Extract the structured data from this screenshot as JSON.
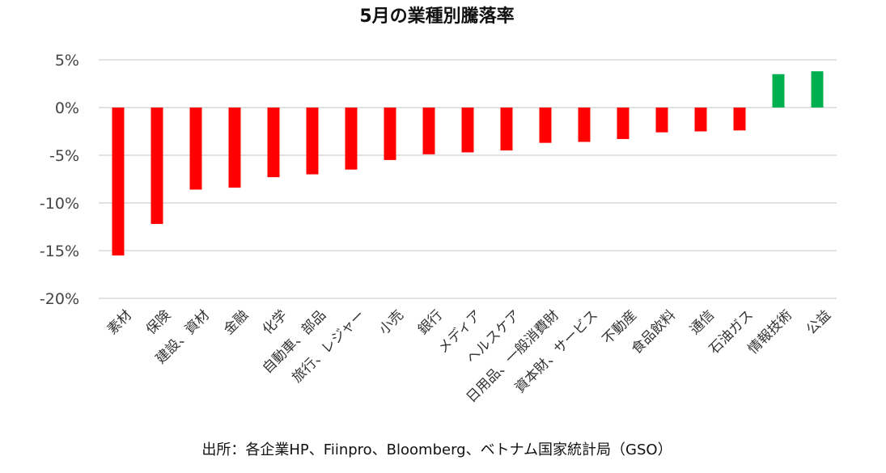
{
  "chart_data": {
    "type": "bar",
    "title": "5月の業種別騰落率",
    "categories": [
      "素材",
      "保険",
      "建設、資材",
      "金融",
      "化学",
      "自動車、部品",
      "旅行、レジャー",
      "小売",
      "銀行",
      "メディア",
      "ヘルスケア",
      "日用品、一般消費財",
      "資本財、サービス",
      "不動産",
      "食品飲料",
      "通信",
      "石油ガス",
      "情報技術",
      "公益"
    ],
    "values": [
      -15.5,
      -12.2,
      -8.6,
      -8.4,
      -7.3,
      -7.0,
      -6.5,
      -5.5,
      -4.9,
      -4.7,
      -4.5,
      -3.7,
      -3.6,
      -3.3,
      -2.6,
      -2.5,
      -2.4,
      3.5,
      3.8
    ],
    "ylim": [
      -20,
      5
    ],
    "yticks": [
      5,
      0,
      -5,
      -10,
      -15,
      -20
    ],
    "ytick_labels": [
      "5%",
      "0%",
      "-5%",
      "-10%",
      "-15%",
      "-20%"
    ],
    "xlabel": "",
    "ylabel": "",
    "grid": true,
    "colors": {
      "negative": "#ff0000",
      "positive": "#00b050",
      "grid": "#d9d9d9"
    }
  },
  "source": "出所：各企業HP、Fiinpro、Bloomberg、ベトナム国家統計局（GSO）"
}
